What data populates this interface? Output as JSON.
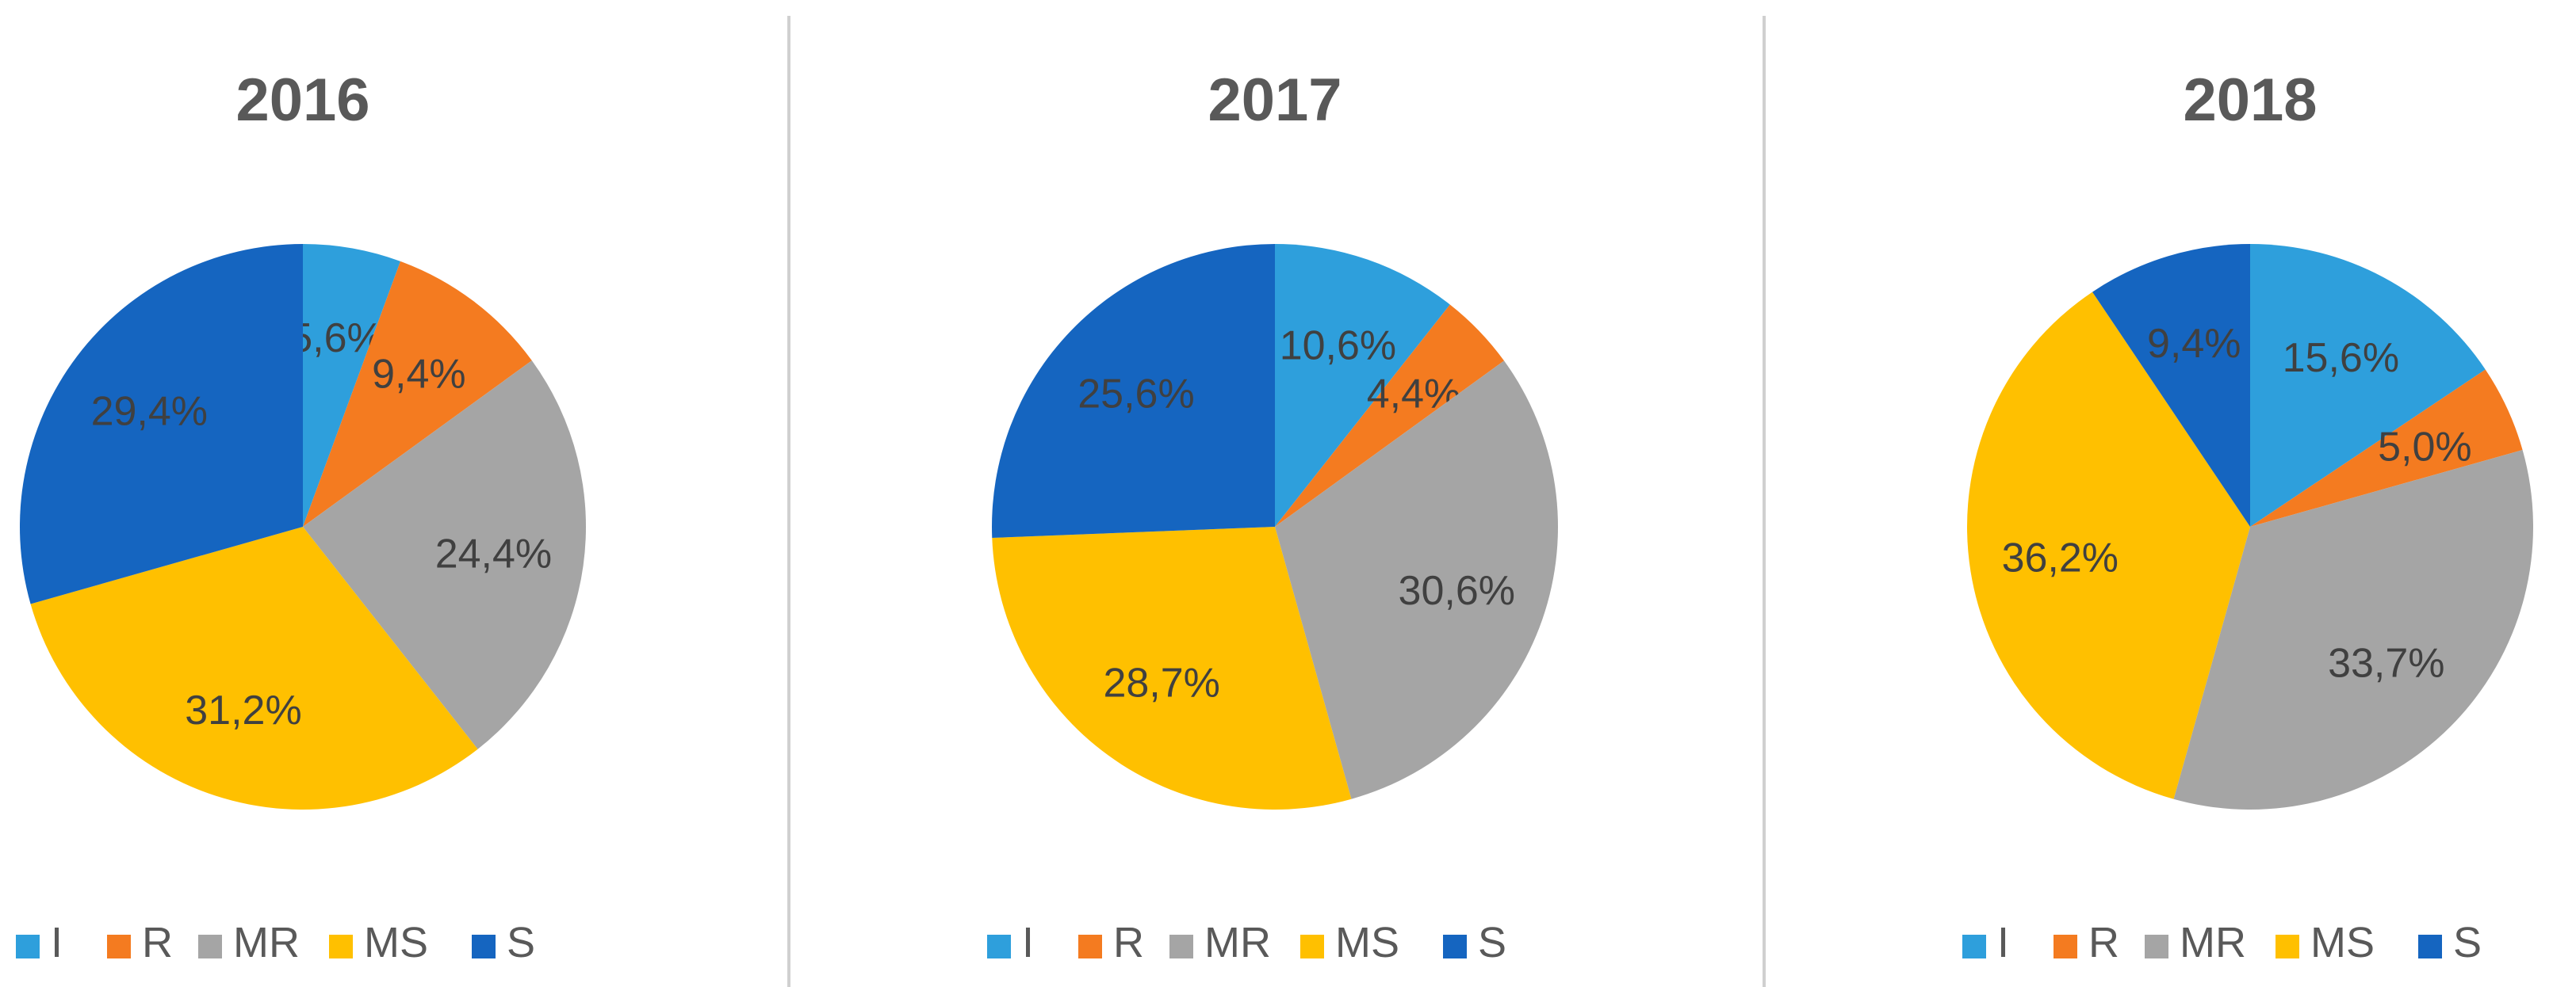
{
  "chart_data": [
    {
      "type": "pie",
      "title": "2016",
      "categories": [
        "I",
        "R",
        "MR",
        "MS",
        "S"
      ],
      "values": [
        5.6,
        9.4,
        24.4,
        31.2,
        29.4
      ],
      "labels": [
        "5,6%",
        "9,4%",
        "24,4%",
        "31,2%",
        "29,4%"
      ],
      "legend": "bottom"
    },
    {
      "type": "pie",
      "title": "2017",
      "categories": [
        "I",
        "R",
        "MR",
        "MS",
        "S"
      ],
      "values": [
        10.6,
        4.4,
        30.6,
        28.7,
        25.6
      ],
      "labels": [
        "10,6%",
        "4,4%",
        "30,6%",
        "28,7%",
        "25,6%"
      ],
      "legend": "bottom"
    },
    {
      "type": "pie",
      "title": "2018",
      "categories": [
        "I",
        "R",
        "MR",
        "MS",
        "S"
      ],
      "values": [
        15.6,
        5.0,
        33.7,
        36.2,
        9.4
      ],
      "labels": [
        "15,6%",
        "5,0%",
        "33,7%",
        "36,2%",
        "9,4%"
      ],
      "legend": "bottom"
    }
  ],
  "colors": {
    "I": "#2e9fdc",
    "R": "#f47b20",
    "MR": "#a5a5a5",
    "MS": "#ffc000",
    "S": "#1565c0"
  }
}
